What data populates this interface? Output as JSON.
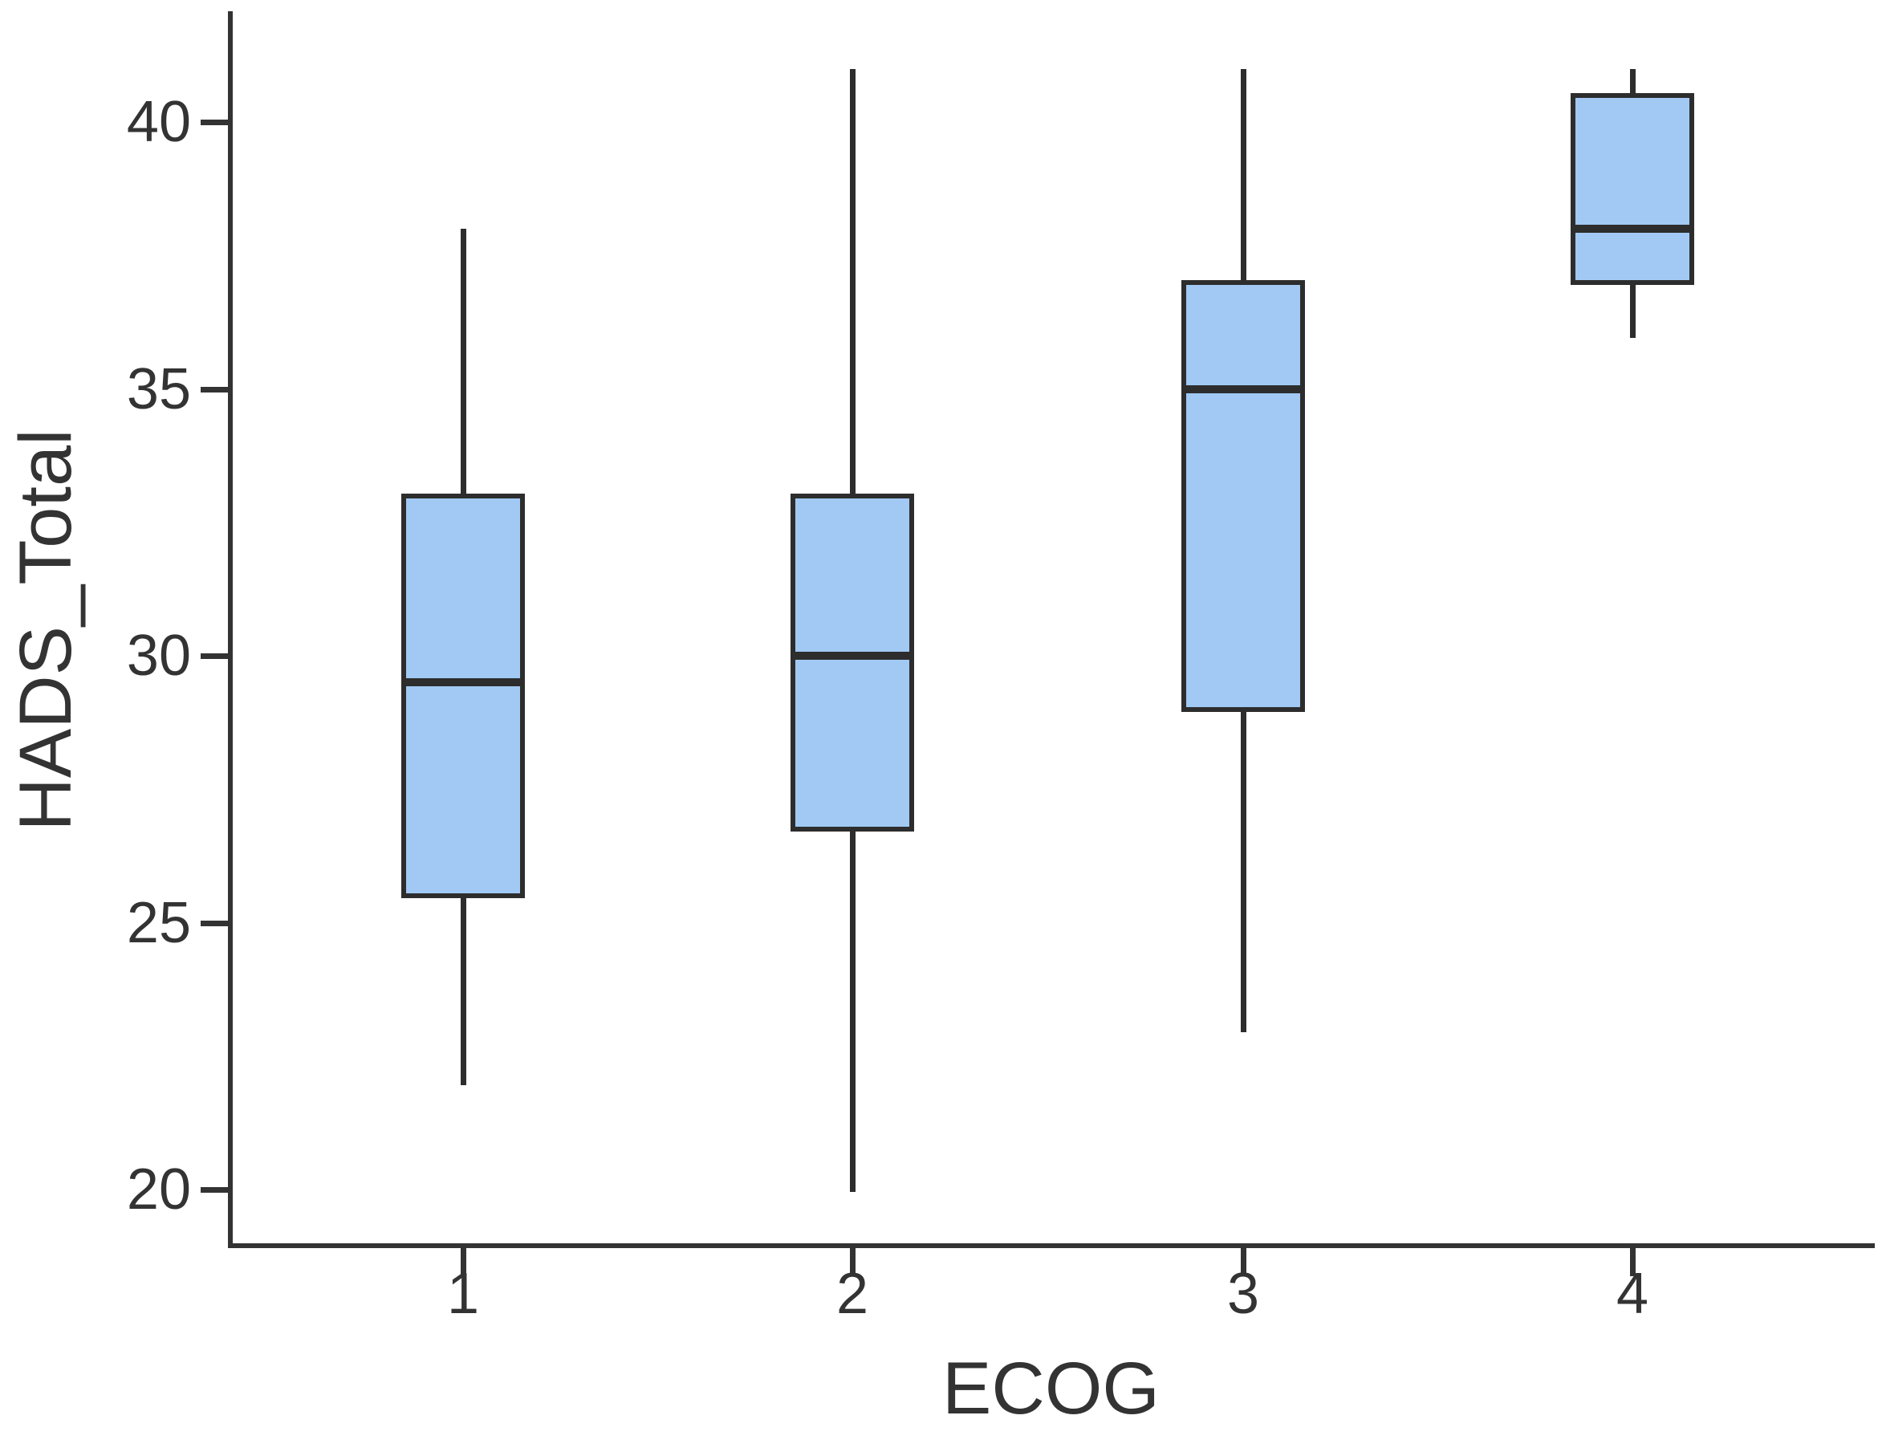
{
  "figure": {
    "x_axis_title": "ECOG",
    "y_axis_title": "HADS_Total"
  },
  "chart_data": {
    "type": "boxplot",
    "title": "",
    "xlabel": "ECOG",
    "ylabel": "HADS_Total",
    "categories": [
      "1",
      "2",
      "3",
      "4"
    ],
    "y_ticks": [
      20,
      25,
      30,
      35,
      40
    ],
    "y_range_shown": [
      19.2,
      42.1
    ],
    "grid": false,
    "legend": false,
    "whisker_caps": false,
    "series": [
      {
        "category": "1",
        "whisker_low": 22,
        "q1": 25.5,
        "median": 29.5,
        "q3": 33,
        "whisker_high": 38
      },
      {
        "category": "2",
        "whisker_low": 20,
        "q1": 26.75,
        "median": 30,
        "q3": 33,
        "whisker_high": 41
      },
      {
        "category": "3",
        "whisker_low": 23,
        "q1": 29,
        "median": 35,
        "q3": 37,
        "whisker_high": 41
      },
      {
        "category": "4",
        "whisker_low": 36,
        "q1": 37,
        "median": 38,
        "q3": 40.5,
        "whisker_high": 41
      }
    ],
    "colors": {
      "box_fill": "#a1c9f4",
      "box_edge": "#2d2d2d",
      "axis": "#333333",
      "text": "#333333",
      "background": "#ffffff"
    }
  }
}
